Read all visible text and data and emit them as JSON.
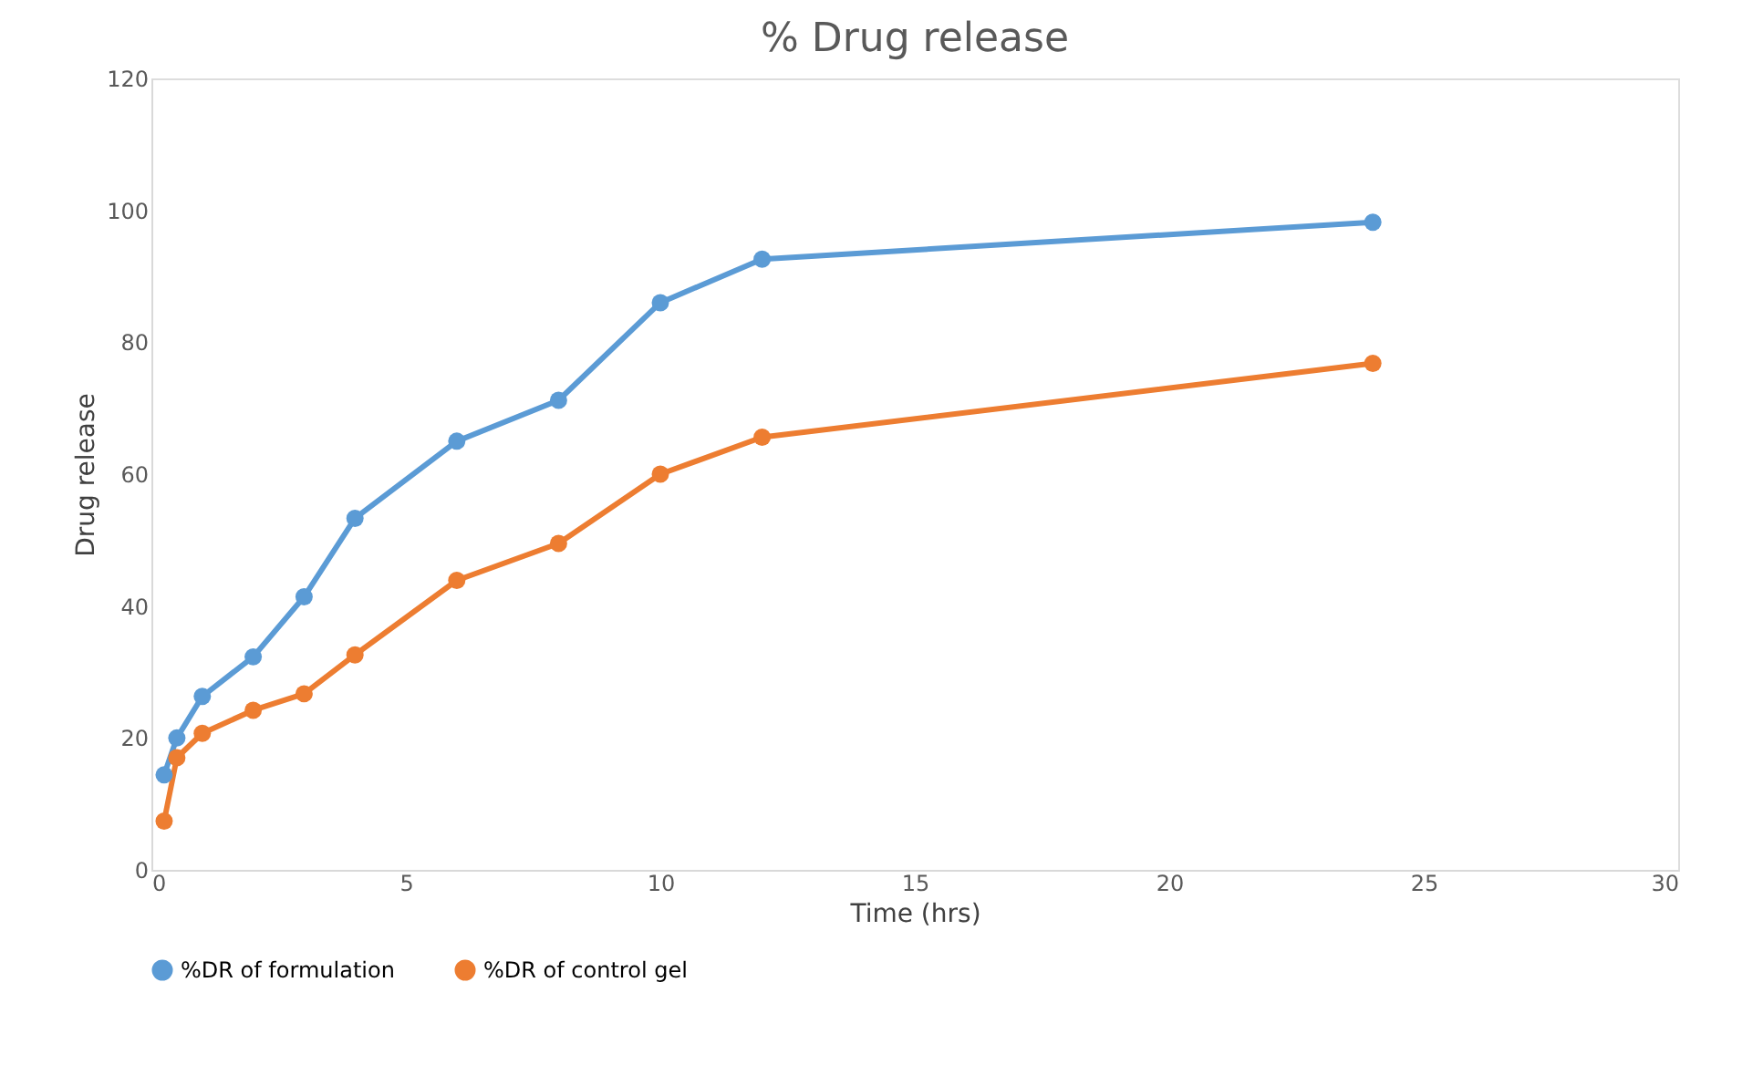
{
  "chart_data": {
    "type": "line",
    "title": "% Drug release",
    "xlabel": "Time (hrs)",
    "ylabel": "Drug release",
    "x": [
      0.25,
      0.5,
      1,
      2,
      3,
      4,
      6,
      8,
      10,
      12,
      24
    ],
    "series": [
      {
        "name": "%DR of formulation",
        "color": "#5b9bd5",
        "values": [
          14.4,
          20,
          26.3,
          32.3,
          41.4,
          53.3,
          65,
          71.2,
          86,
          92.6,
          98.2
        ]
      },
      {
        "name": "%DR of control gel",
        "color": "#ed7d31",
        "values": [
          7.4,
          17,
          20.7,
          24.2,
          26.7,
          32.6,
          43.9,
          49.5,
          60,
          65.6,
          76.8
        ]
      }
    ],
    "xlim": [
      0,
      30
    ],
    "xticks": [
      0,
      5,
      10,
      15,
      20,
      25,
      30
    ],
    "ylim": [
      0,
      120
    ],
    "yticks": [
      0,
      20,
      40,
      60,
      80,
      100,
      120
    ],
    "grid": false,
    "legend": "bottom",
    "marker": "circle",
    "line_style": "solid"
  }
}
